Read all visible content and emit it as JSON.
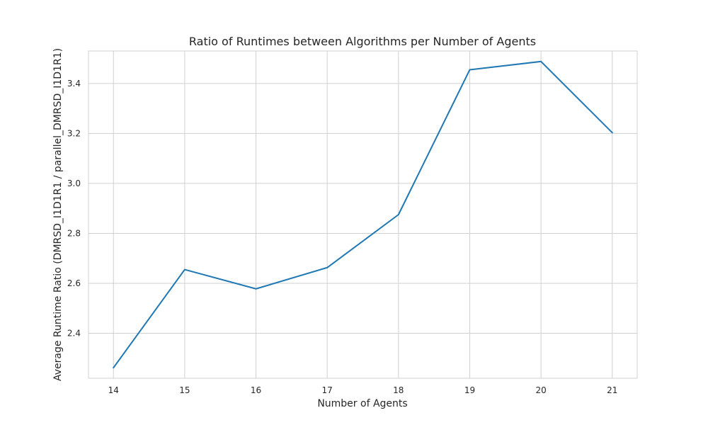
{
  "chart_data": {
    "type": "line",
    "title": "Ratio of Runtimes between Algorithms per Number of Agents",
    "xlabel": "Number of Agents",
    "ylabel": "Average Runtime Ratio (DMRSD_I1D1R1 / parallel_DMRSD_I1D1R1)",
    "x": [
      14,
      15,
      16,
      17,
      18,
      19,
      20,
      21
    ],
    "series": [
      {
        "values": [
          2.262,
          2.655,
          2.578,
          2.663,
          2.875,
          3.455,
          3.488,
          3.203
        ],
        "color": "#1f77b4"
      }
    ],
    "xticks": [
      "14",
      "15",
      "16",
      "17",
      "18",
      "19",
      "20",
      "21"
    ],
    "yticks": [
      "2.4",
      "2.6",
      "2.8",
      "3.0",
      "3.2",
      "3.4"
    ],
    "xlim": [
      13.65,
      21.35
    ],
    "ylim": [
      2.22,
      3.53
    ],
    "grid": true,
    "legend": "none"
  }
}
